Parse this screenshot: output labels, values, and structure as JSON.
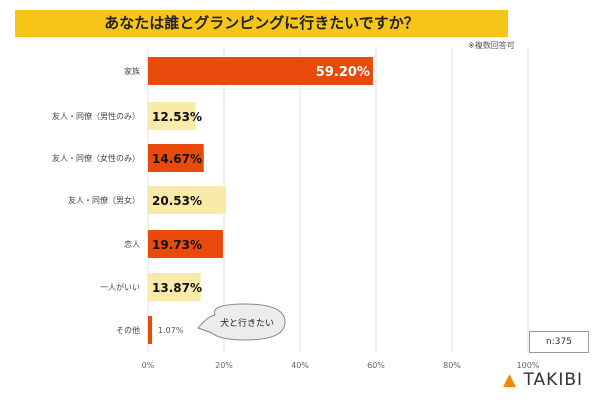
{
  "chart_data": {
    "type": "bar",
    "title": "あなたは誰とグランピングに行きたいですか？",
    "note": "※複数回答可",
    "categories": [
      "家族",
      "友人・同僚（男性のみ）",
      "友人・同僚（女性のみ）",
      "友人・同僚（男女）",
      "恋人",
      "一人がいい",
      "その他"
    ],
    "values": [
      59.2,
      12.53,
      14.67,
      20.53,
      19.73,
      13.87,
      1.07
    ],
    "value_labels": [
      "59.20%",
      "12.53%",
      "14.67%",
      "20.53%",
      "19.73%",
      "13.87%",
      "1.07%"
    ],
    "bar_colors": [
      "#e84a0c",
      "#f8eaa8",
      "#e84a0c",
      "#f8eaa8",
      "#e84a0c",
      "#f8eaa8",
      "#e84a0c"
    ],
    "xlim": [
      0,
      100
    ],
    "xticks": [
      "0%",
      "20%",
      "40%",
      "60%",
      "80%",
      "100%"
    ],
    "grid": true,
    "annotation": "犬と行きたい",
    "sample_size": "n:375"
  },
  "brand": "TAKIBI"
}
